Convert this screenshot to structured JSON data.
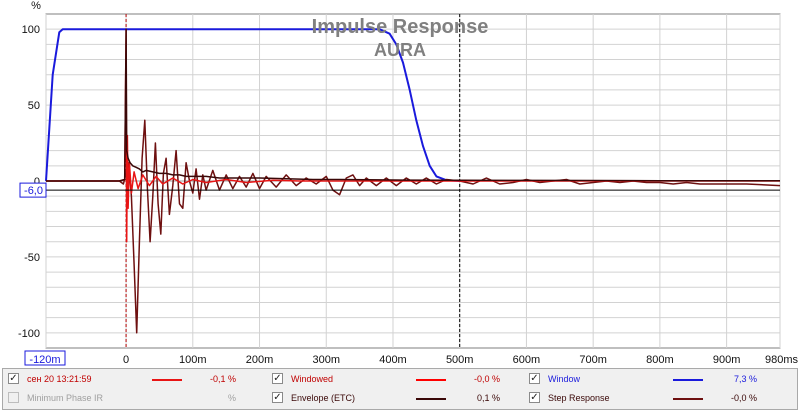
{
  "chart_data": {
    "type": "line",
    "title": "Impulse Response",
    "subtitle": "AURA",
    "y_unit": "%",
    "x_unit": "ms",
    "xlim_ms": [
      -120,
      980
    ],
    "ylim": [
      -110,
      110
    ],
    "y_ticks": [
      {
        "value": 100,
        "label": "100"
      },
      {
        "value": 50,
        "label": "50"
      },
      {
        "value": 0,
        "label": "0"
      },
      {
        "value": -50,
        "label": "-50"
      },
      {
        "value": -100,
        "label": "-100"
      }
    ],
    "x_ticks": [
      {
        "value": -120,
        "label": "-120m"
      },
      {
        "value": 0,
        "label": "0"
      },
      {
        "value": 100,
        "label": "100m"
      },
      {
        "value": 200,
        "label": "200m"
      },
      {
        "value": 300,
        "label": "300m"
      },
      {
        "value": 400,
        "label": "400m"
      },
      {
        "value": 500,
        "label": "500m"
      },
      {
        "value": 600,
        "label": "600m"
      },
      {
        "value": 700,
        "label": "700m"
      },
      {
        "value": 800,
        "label": "800m"
      },
      {
        "value": 900,
        "label": "900m"
      },
      {
        "value": 980,
        "label": "980ms"
      }
    ],
    "y_marker": {
      "value": -6,
      "label": "-6,0"
    },
    "cursor_lines_ms": [
      0,
      500
    ],
    "grid": true,
    "series": [
      {
        "name": "Window",
        "color": "#1a1adc",
        "points": [
          [
            -120,
            0
          ],
          [
            -110,
            70
          ],
          [
            -100,
            98
          ],
          [
            -95,
            100
          ],
          [
            380,
            100
          ],
          [
            395,
            97
          ],
          [
            405,
            90
          ],
          [
            415,
            78
          ],
          [
            425,
            60
          ],
          [
            435,
            40
          ],
          [
            445,
            23
          ],
          [
            455,
            10
          ],
          [
            465,
            3
          ],
          [
            480,
            0.5
          ],
          [
            500,
            0
          ]
        ]
      },
      {
        "name": "Windowed",
        "color": "#e81414",
        "points": [
          [
            -120,
            0
          ],
          [
            -10,
            0
          ],
          [
            -2,
            1
          ],
          [
            0,
            100
          ],
          [
            1,
            -40
          ],
          [
            2,
            30
          ],
          [
            3,
            -18
          ],
          [
            5,
            12
          ],
          [
            8,
            -8
          ],
          [
            12,
            6
          ],
          [
            18,
            -5
          ],
          [
            25,
            4
          ],
          [
            35,
            -3
          ],
          [
            45,
            3
          ],
          [
            55,
            -2
          ],
          [
            70,
            2
          ],
          [
            85,
            -2
          ],
          [
            100,
            1
          ],
          [
            120,
            -1
          ],
          [
            150,
            1
          ],
          [
            180,
            -1
          ],
          [
            220,
            0.5
          ],
          [
            260,
            0
          ],
          [
            980,
            0
          ]
        ]
      },
      {
        "name": "Envelope (ETC)",
        "color": "#3a0808",
        "points": [
          [
            -120,
            0
          ],
          [
            -10,
            0
          ],
          [
            -2,
            1
          ],
          [
            0,
            100
          ],
          [
            1,
            20
          ],
          [
            3,
            15
          ],
          [
            6,
            12
          ],
          [
            10,
            10
          ],
          [
            15,
            9
          ],
          [
            20,
            8
          ],
          [
            25,
            6
          ],
          [
            30,
            7
          ],
          [
            40,
            6
          ],
          [
            50,
            5
          ],
          [
            60,
            5
          ],
          [
            70,
            4
          ],
          [
            80,
            4
          ],
          [
            90,
            3
          ],
          [
            100,
            3
          ],
          [
            120,
            3
          ],
          [
            140,
            2
          ],
          [
            160,
            2
          ],
          [
            180,
            2
          ],
          [
            200,
            2
          ],
          [
            240,
            1.5
          ],
          [
            280,
            1
          ],
          [
            320,
            1
          ],
          [
            360,
            0.8
          ],
          [
            420,
            0.6
          ],
          [
            500,
            0.5
          ],
          [
            600,
            0.4
          ],
          [
            700,
            0.3
          ],
          [
            800,
            0.2
          ],
          [
            980,
            0.1
          ]
        ]
      },
      {
        "name": "Step Response",
        "color": "#6e1010",
        "points": [
          [
            -120,
            0
          ],
          [
            -10,
            0
          ],
          [
            -4,
            -2
          ],
          [
            0,
            5
          ],
          [
            4,
            12
          ],
          [
            8,
            -10
          ],
          [
            12,
            -55
          ],
          [
            16,
            -100
          ],
          [
            20,
            -40
          ],
          [
            24,
            15
          ],
          [
            28,
            40
          ],
          [
            32,
            -5
          ],
          [
            36,
            -40
          ],
          [
            40,
            -10
          ],
          [
            44,
            25
          ],
          [
            48,
            -15
          ],
          [
            52,
            -35
          ],
          [
            56,
            5
          ],
          [
            60,
            15
          ],
          [
            65,
            -22
          ],
          [
            70,
            -3
          ],
          [
            75,
            20
          ],
          [
            80,
            -15
          ],
          [
            85,
            -18
          ],
          [
            90,
            12
          ],
          [
            95,
            0
          ],
          [
            100,
            -8
          ],
          [
            105,
            8
          ],
          [
            110,
            -12
          ],
          [
            115,
            4
          ],
          [
            120,
            -6
          ],
          [
            130,
            7
          ],
          [
            140,
            -6
          ],
          [
            150,
            4
          ],
          [
            160,
            -5
          ],
          [
            170,
            3
          ],
          [
            180,
            -4
          ],
          [
            190,
            5
          ],
          [
            200,
            -5
          ],
          [
            210,
            3
          ],
          [
            225,
            -4
          ],
          [
            240,
            4
          ],
          [
            255,
            -3
          ],
          [
            270,
            2
          ],
          [
            285,
            -2
          ],
          [
            300,
            3
          ],
          [
            310,
            -6
          ],
          [
            320,
            -9
          ],
          [
            330,
            2
          ],
          [
            340,
            4
          ],
          [
            350,
            -3
          ],
          [
            360,
            2
          ],
          [
            375,
            -3
          ],
          [
            390,
            2
          ],
          [
            405,
            -3
          ],
          [
            420,
            2
          ],
          [
            435,
            -2
          ],
          [
            450,
            2
          ],
          [
            465,
            -2
          ],
          [
            480,
            1
          ],
          [
            500,
            0
          ],
          [
            520,
            -2
          ],
          [
            540,
            2
          ],
          [
            560,
            -2
          ],
          [
            580,
            -1
          ],
          [
            600,
            1
          ],
          [
            620,
            -1
          ],
          [
            640,
            0
          ],
          [
            660,
            1
          ],
          [
            680,
            -2
          ],
          [
            700,
            -1
          ],
          [
            720,
            0
          ],
          [
            740,
            -1
          ],
          [
            760,
            0
          ],
          [
            780,
            -1
          ],
          [
            800,
            -1
          ],
          [
            820,
            -2
          ],
          [
            840,
            -1
          ],
          [
            860,
            -2
          ],
          [
            880,
            -2
          ],
          [
            900,
            -2
          ],
          [
            930,
            -2
          ],
          [
            980,
            -3
          ]
        ]
      }
    ]
  },
  "legend": {
    "items": [
      {
        "key": "measurement",
        "label": "сен 20 13:21:59",
        "value": "-0,1 %",
        "checked": true,
        "enabled": true,
        "color": "#e81414",
        "label_color": "#c00000",
        "has_swatch": true
      },
      {
        "key": "windowed",
        "label": "Windowed",
        "value": "-0,0 %",
        "checked": true,
        "enabled": true,
        "color": "#ff0000",
        "label_color": "#c00000",
        "has_swatch": true
      },
      {
        "key": "window",
        "label": "Window",
        "value": "7,3 %",
        "checked": true,
        "enabled": true,
        "color": "#1a1adc",
        "label_color": "#1a1adc",
        "has_swatch": true
      },
      {
        "key": "min-phase",
        "label": "Minimum Phase IR",
        "value": "%",
        "checked": false,
        "enabled": false,
        "color": "#a0a0a0",
        "label_color": "#a0a0a0",
        "has_swatch": false
      },
      {
        "key": "envelope",
        "label": "Envelope (ETC)",
        "value": "0,1 %",
        "checked": true,
        "enabled": true,
        "color": "#3a0808",
        "label_color": "#3a0808",
        "has_swatch": true
      },
      {
        "key": "step",
        "label": "Step Response",
        "value": "-0,0 %",
        "checked": true,
        "enabled": true,
        "color": "#6e1010",
        "label_color": "#3a0808",
        "has_swatch": true
      }
    ]
  }
}
